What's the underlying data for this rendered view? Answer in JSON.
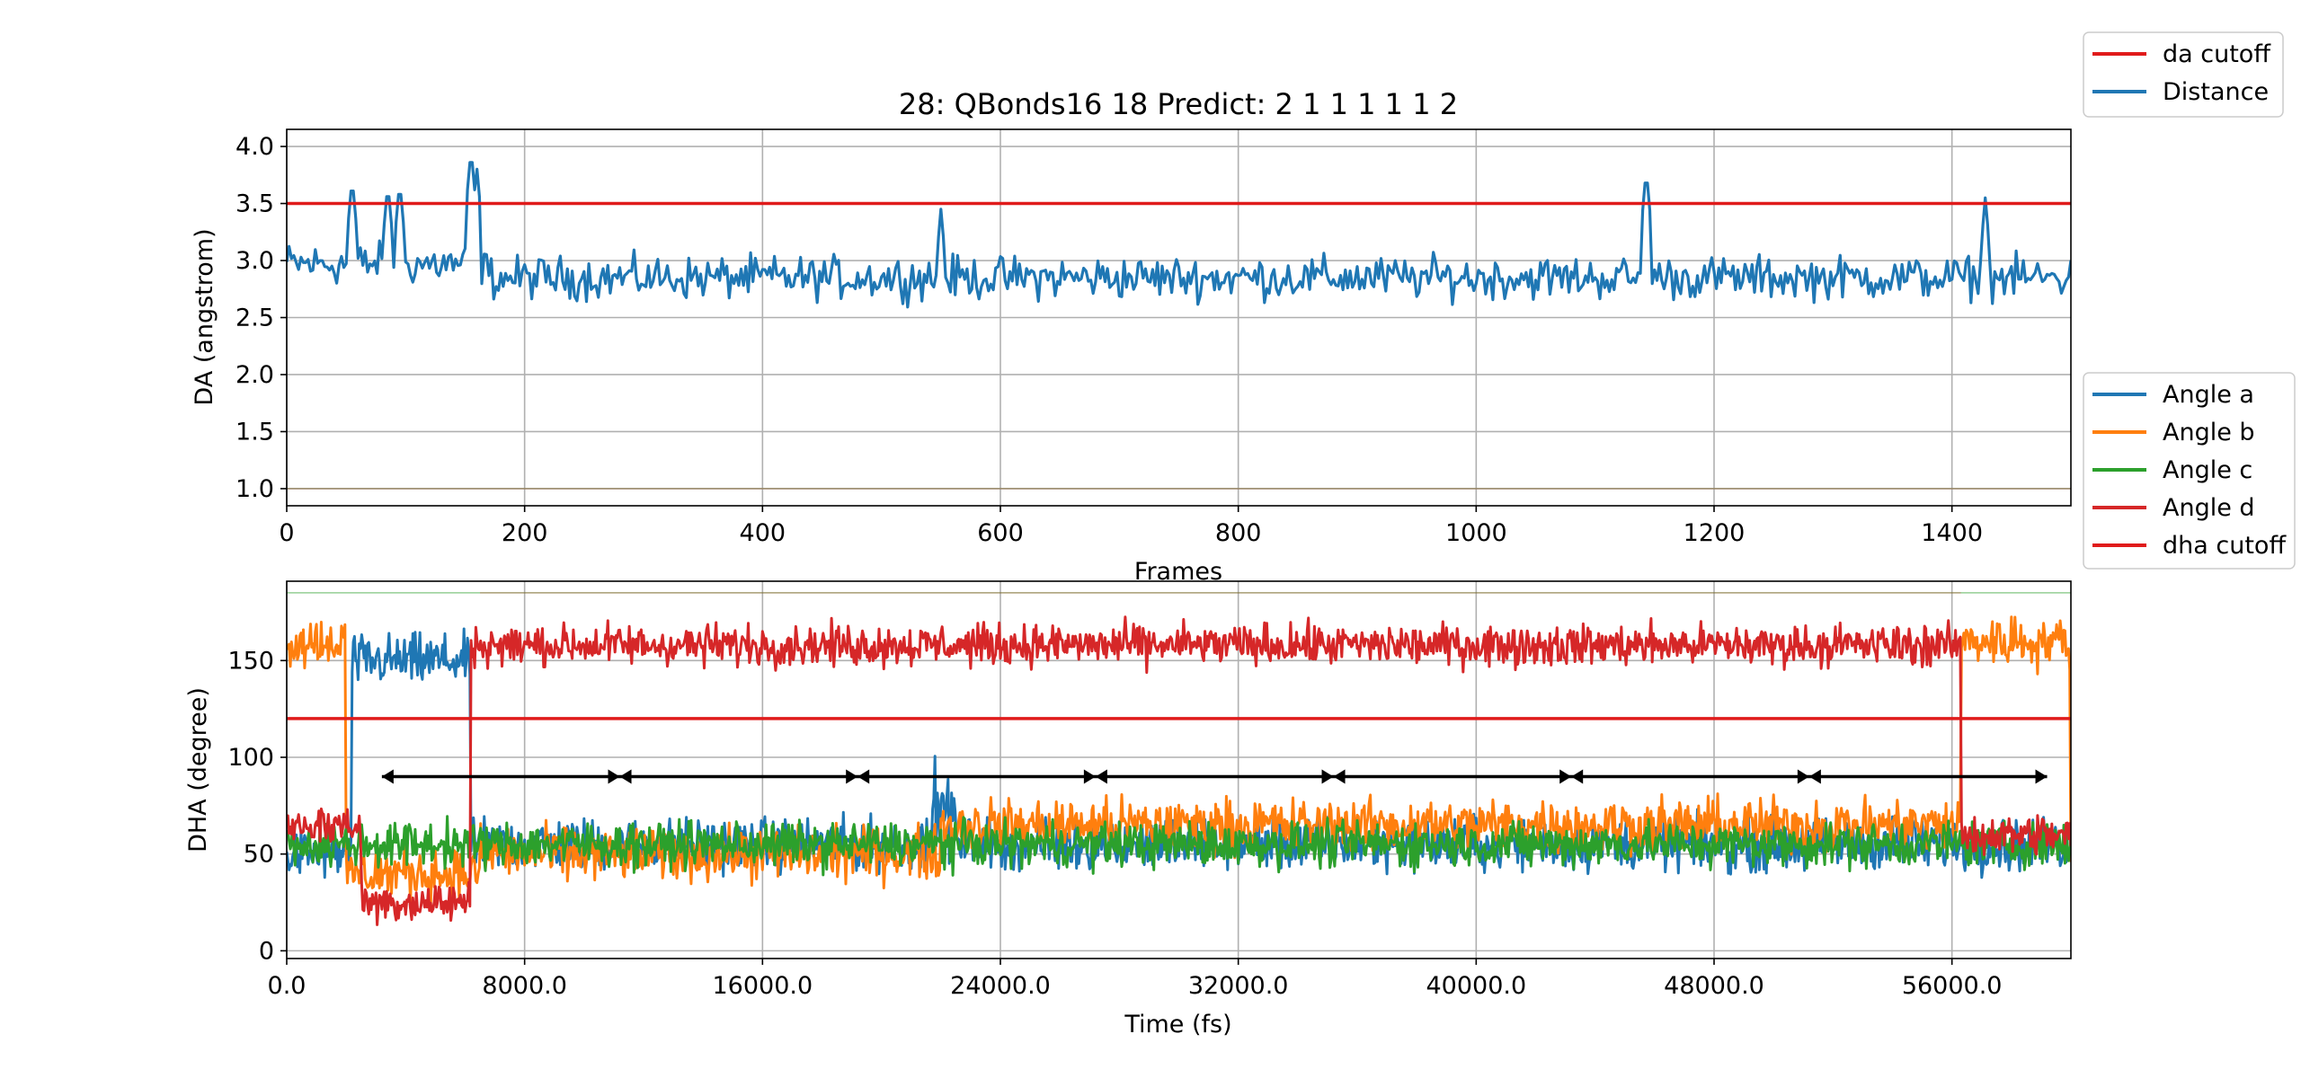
{
  "title": "28: QBonds16 18 Predict: 2 1 1 1 1 1 2",
  "colors": {
    "blue": "#1f77b4",
    "orange": "#ff7f0e",
    "green": "#2ca02c",
    "red": "#d62728",
    "cutoff_red": "#e01b1b",
    "grid": "#b0b0b0",
    "marker": "#000000"
  },
  "chart_data": [
    {
      "type": "line",
      "xlabel": "Frames",
      "ylabel": "DA (angstrom)",
      "xlim": [
        0,
        1500
      ],
      "ylim": [
        0.85,
        4.15
      ],
      "xticks": [
        0,
        200,
        400,
        600,
        800,
        1000,
        1200,
        1400
      ],
      "xtick_labels": [
        "0",
        "200",
        "400",
        "600",
        "800",
        "1000",
        "1200",
        "1400"
      ],
      "yticks": [
        1.0,
        1.5,
        2.0,
        2.5,
        3.0,
        3.5,
        4.0
      ],
      "ytick_labels": [
        "1.0",
        "1.5",
        "2.0",
        "2.5",
        "3.0",
        "3.5",
        "4.0"
      ],
      "grid": true,
      "legend_position": "outside-right-top",
      "legend": [
        {
          "label": "da cutoff",
          "color": "#e01b1b"
        },
        {
          "label": "Distance",
          "color": "#1f77b4"
        }
      ],
      "cutoff": 3.5,
      "near_one_baseline": 1.0,
      "distance_series": {
        "name": "Distance",
        "x_start": 0,
        "x_end": 1500,
        "baseline": 2.85,
        "noise": 0.17,
        "spikes": [
          [
            55,
            3.73
          ],
          [
            85,
            3.68
          ],
          [
            95,
            3.7
          ],
          [
            155,
            3.98
          ],
          [
            160,
            3.8
          ],
          [
            550,
            3.45
          ],
          [
            1143,
            3.8
          ],
          [
            1428,
            3.55
          ]
        ]
      }
    },
    {
      "type": "line",
      "xlabel": "Time (fs)",
      "ylabel": "DHA (degree)",
      "xlim": [
        0,
        60000
      ],
      "ylim": [
        -4,
        191
      ],
      "xticks": [
        0,
        8000,
        16000,
        24000,
        32000,
        40000,
        48000,
        56000
      ],
      "xtick_labels": [
        "0.0",
        "8000.0",
        "16000.0",
        "24000.0",
        "32000.0",
        "40000.0",
        "48000.0",
        "56000.0"
      ],
      "yticks": [
        0,
        50,
        100,
        150
      ],
      "ytick_labels": [
        "0",
        "50",
        "100",
        "150"
      ],
      "grid": true,
      "legend_position": "outside-right-middle",
      "legend": [
        {
          "label": "Angle a",
          "color": "#1f77b4"
        },
        {
          "label": "Angle b",
          "color": "#ff7f0e"
        },
        {
          "label": "Angle c",
          "color": "#2ca02c"
        },
        {
          "label": "Angle d",
          "color": "#d62728"
        },
        {
          "label": "dha cutoff",
          "color": "#e01b1b"
        }
      ],
      "cutoff": 120,
      "top_band": 185,
      "marker_line_y": 90,
      "marker_x": [
        3200,
        11200,
        19200,
        27200,
        35200,
        43200,
        51200,
        59200
      ],
      "series": [
        {
          "name": "Angle a",
          "segments": [
            [
              0,
              2200,
              50
            ],
            [
              2200,
              6200,
              150
            ],
            [
              6200,
              60000,
              55
            ]
          ],
          "noise": 14
        },
        {
          "name": "Angle b",
          "segments": [
            [
              0,
              2000,
              160
            ],
            [
              2000,
              6500,
              40
            ],
            [
              6500,
              22000,
              50
            ],
            [
              22000,
              56300,
              65
            ],
            [
              56300,
              60000,
              160
            ]
          ],
          "noise": 14
        },
        {
          "name": "Angle c",
          "segments": [
            [
              0,
              60000,
              55
            ]
          ],
          "noise": 12
        },
        {
          "name": "Angle d",
          "segments": [
            [
              0,
              2500,
              65
            ],
            [
              2500,
              6200,
              25
            ],
            [
              6200,
              56300,
              158
            ],
            [
              56300,
              60000,
              60
            ]
          ],
          "noise": 11
        }
      ]
    }
  ]
}
